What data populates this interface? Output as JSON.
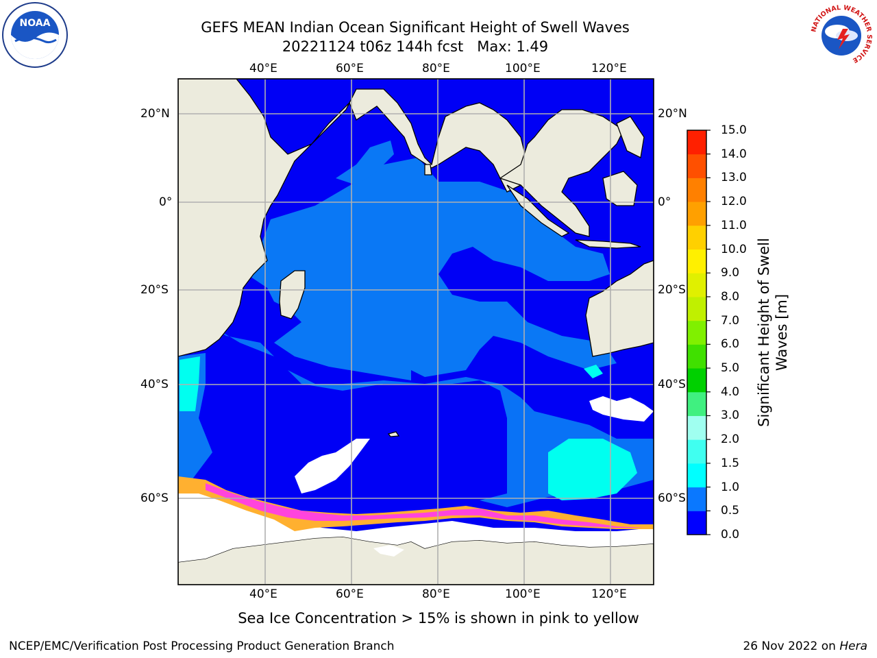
{
  "title_line1": "GEFS MEAN Indian Ocean Significant Height of Swell Waves",
  "title_line2": "20221124 t06z 144h fcst   Max: 1.49",
  "map": {
    "lon_labels": [
      "40°E",
      "60°E",
      "80°E",
      "100°E",
      "120°E"
    ],
    "lat_labels": [
      "20°N",
      "0°",
      "20°S",
      "40°S",
      "60°S"
    ],
    "colors": {
      "land": "#ecebdd",
      "ocean_low": "#0000f5",
      "ocean_mid": "#0a78f5",
      "ocean_cyan": "#00fff0",
      "ice_white": "#ffffff",
      "ice_pink": "#ff44dd",
      "ice_orange": "#ffb030",
      "gridline": "#b0b0b0"
    }
  },
  "colorbar": {
    "label": "Significant Height of Swell Waves [m]",
    "ticks": [
      "0.0",
      "0.5",
      "1.0",
      "1.5",
      "2.0",
      "3.0",
      "4.0",
      "5.0",
      "6.0",
      "7.0",
      "8.0",
      "9.0",
      "10.0",
      "11.0",
      "12.0",
      "13.0",
      "14.0",
      "15.0"
    ],
    "colors": [
      "#0000ff",
      "#0a78ff",
      "#00ffff",
      "#40fff0",
      "#a0fff0",
      "#40f080",
      "#00d000",
      "#40e000",
      "#80f000",
      "#c0f000",
      "#e0f000",
      "#fff000",
      "#ffd000",
      "#ffa000",
      "#ff8000",
      "#ff5000",
      "#ff2000"
    ]
  },
  "caption": "Sea Ice Concentration > 15% is shown in pink to yellow",
  "footer_left": "NCEP/EMC/Verification Post Processing Product Generation Branch",
  "footer_right_date": "26 Nov 2022 on",
  "footer_right_host": "Hera",
  "logos": {
    "noaa_text": "NOAA",
    "nws_ring": "NATIONAL WEATHER SERVICE"
  }
}
